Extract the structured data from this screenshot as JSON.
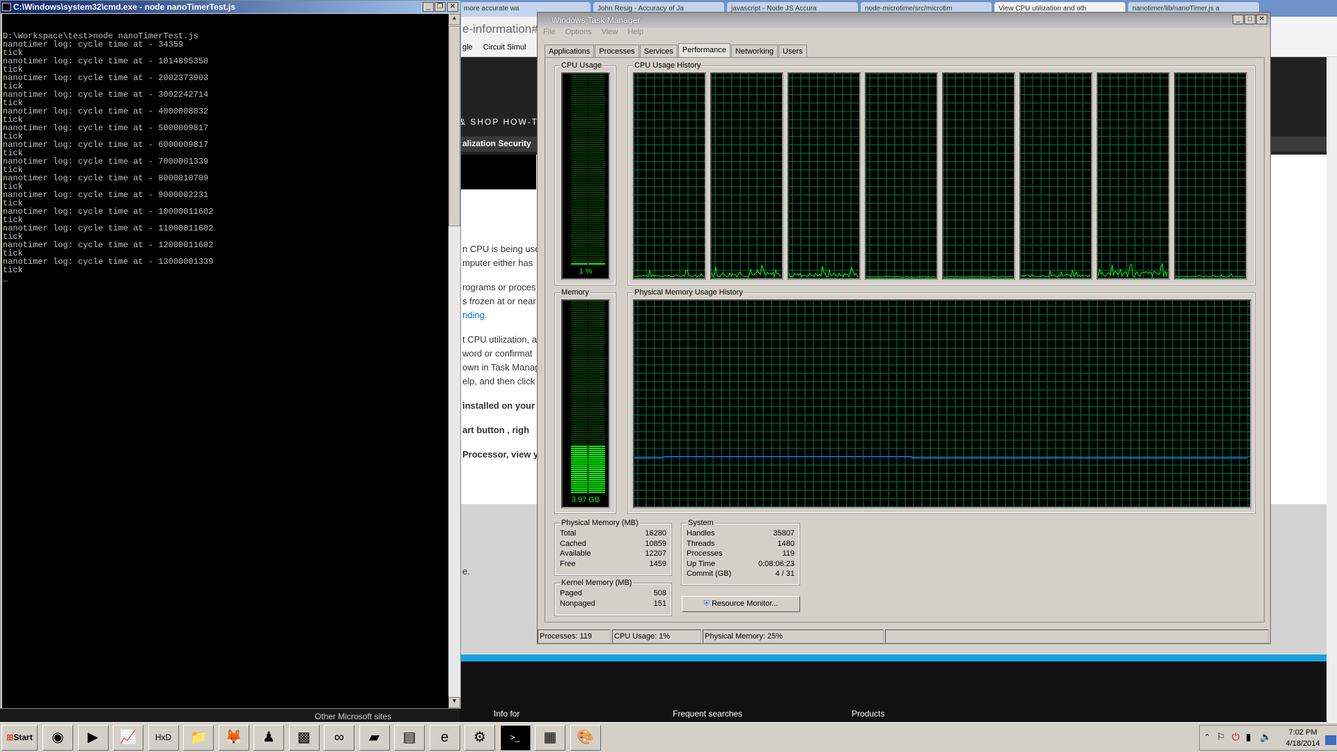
{
  "cmd": {
    "title": "C:\\Windows\\system32\\cmd.exe - node  nanoTimerTest.js",
    "lines": [
      "",
      "D:\\Workspace\\test>node nanoTimerTest.js",
      "nanotimer log: cycle time at - 34359",
      "tick",
      "nanotimer log: cycle time at - 1014895350",
      "tick",
      "nanotimer log: cycle time at - 2002373903",
      "tick",
      "nanotimer log: cycle time at - 3002242714",
      "tick",
      "nanotimer log: cycle time at - 4000008032",
      "tick",
      "nanotimer log: cycle time at - 5000009817",
      "tick",
      "nanotimer log: cycle time at - 6000009817",
      "tick",
      "nanotimer log: cycle time at - 7000001339",
      "tick",
      "nanotimer log: cycle time at - 8000010709",
      "tick",
      "nanotimer log: cycle time at - 9000002231",
      "tick",
      "nanotimer log: cycle time at - 10000011602",
      "tick",
      "nanotimer log: cycle time at - 11000011602",
      "tick",
      "nanotimer log: cycle time at - 12000011602",
      "tick",
      "nanotimer log: cycle time at - 13000001339",
      "tick",
      "_"
    ]
  },
  "browser": {
    "tabs": [
      "more accurate wa",
      "John Resig - Accuracy of Ja",
      "javascript - Node JS Accura",
      "node-microtime/src/microtim",
      "View CPU utilization and oth",
      "nanotimer/lib/nanoTimer.js a"
    ],
    "address": "e-information#",
    "bookmarks": [
      "gle",
      "Circuit Simul"
    ],
    "nav1": "& SHOP    HOW-T",
    "nav2": "alization   Security",
    "paragraphs": [
      "n CPU is being used",
      "mputer either has",
      "rograms or proces",
      "s frozen at or near",
      "nding.",
      "t CPU utilization, at",
      "word or confirmat",
      "own in Task Manag",
      "elp, and then click",
      "installed on your",
      "art button , righ",
      "Processor, view yo",
      "e."
    ],
    "footer": [
      "Other Microsoft sites",
      "Info for",
      "Frequent searches",
      "Products"
    ],
    "link_color": "#0072c6",
    "accent_bar": "#1ba1e2"
  },
  "taskmgr": {
    "title": "Windows Task Manager",
    "menu": [
      "File",
      "Options",
      "View",
      "Help"
    ],
    "tabs": [
      "Applications",
      "Processes",
      "Services",
      "Performance",
      "Networking",
      "Users"
    ],
    "active_tab": "Performance",
    "cpu_usage": {
      "label": "CPU Usage",
      "value": "1 %",
      "percent": 1
    },
    "cpu_history": {
      "label": "CPU Usage History",
      "cores": 8
    },
    "memory": {
      "label": "Memory",
      "value": "3.97 GB",
      "percent": 25
    },
    "mem_history": {
      "label": "Physical Memory Usage History"
    },
    "physical": {
      "label": "Physical Memory (MB)",
      "rows": [
        [
          "Total",
          "16280"
        ],
        [
          "Cached",
          "10859"
        ],
        [
          "Available",
          "12207"
        ],
        [
          "Free",
          "1459"
        ]
      ]
    },
    "kernel": {
      "label": "Kernel Memory (MB)",
      "rows": [
        [
          "Paged",
          "508"
        ],
        [
          "Nonpaged",
          "151"
        ]
      ]
    },
    "system": {
      "label": "System",
      "rows": [
        [
          "Handles",
          "35807"
        ],
        [
          "Threads",
          "1480"
        ],
        [
          "Processes",
          "119"
        ],
        [
          "Up Time",
          "0:08:06:23"
        ],
        [
          "Commit (GB)",
          "4 / 31"
        ]
      ]
    },
    "resource_monitor": "Resource Monitor...",
    "status": [
      "Processes: 119",
      "CPU Usage: 1%",
      "Physical Memory: 25%"
    ],
    "graph_line": "#00ff00",
    "grid_color": "#008040",
    "mem_line": "#0080ff"
  },
  "taskbar": {
    "start": "Start",
    "icons": [
      "chrome",
      "media-player",
      "chart-app",
      "hxd",
      "file-explorer",
      "firefox",
      "figure-app",
      "minecraft",
      "arduino",
      "green-app",
      "window-app",
      "internet-explorer",
      "steam",
      "cmd",
      "task-manager",
      "paint"
    ],
    "time": "7:02 PM",
    "date": "4/18/2014"
  }
}
